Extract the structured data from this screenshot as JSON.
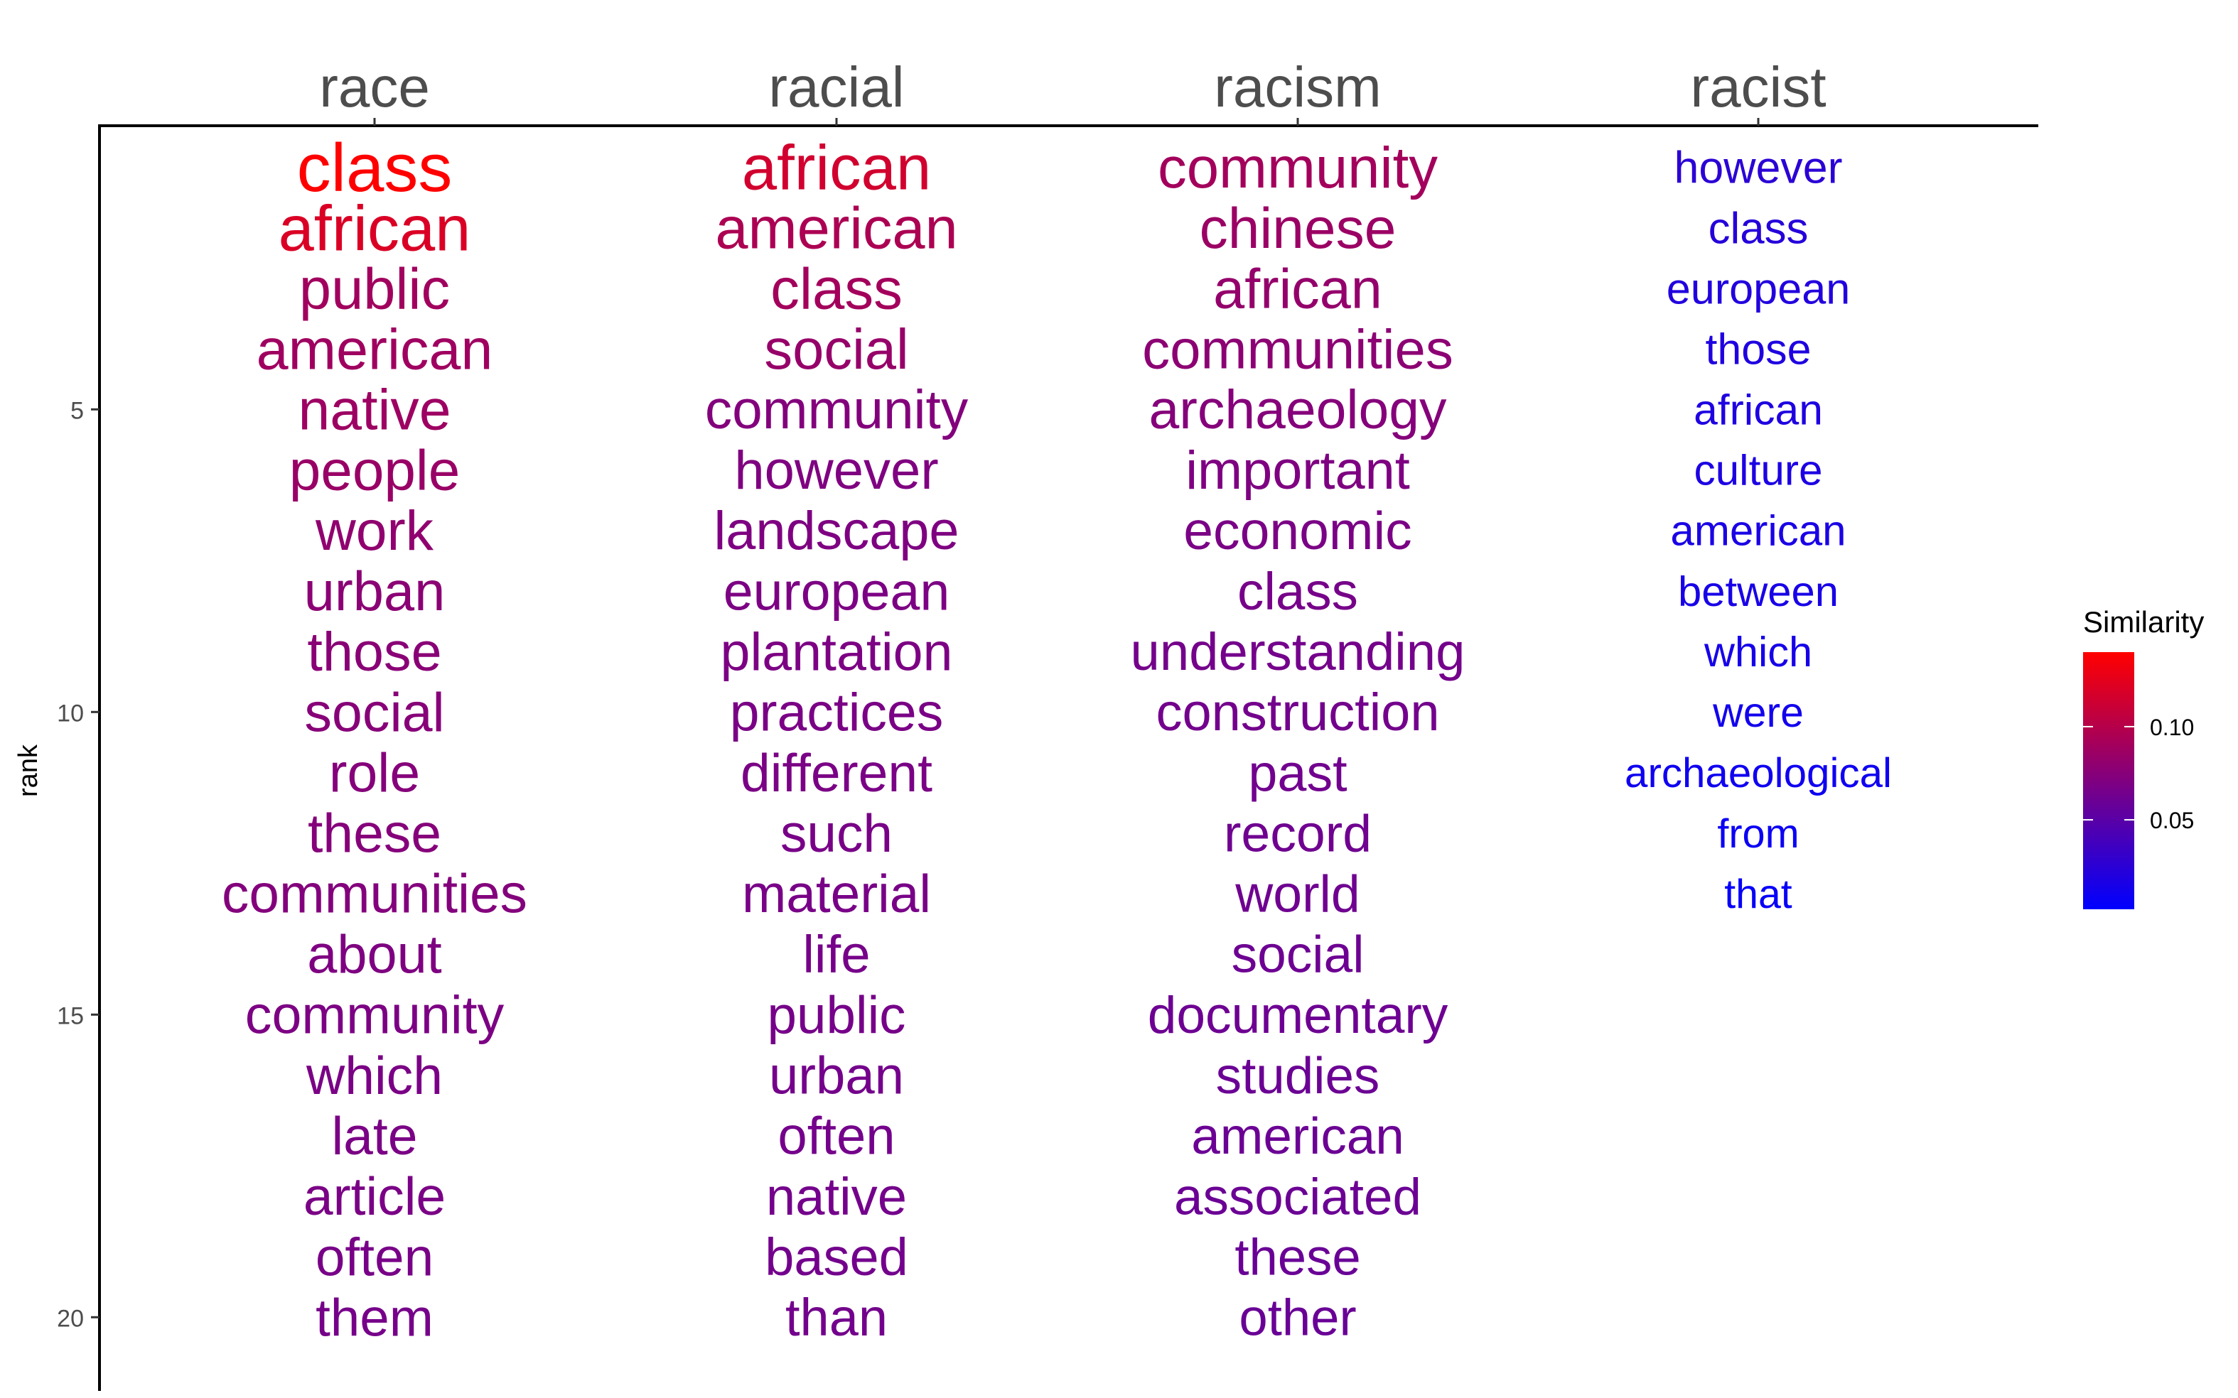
{
  "chart_data": {
    "type": "table",
    "ylabel": "rank",
    "y_axis": {
      "direction": "reversed",
      "ticks": [
        5,
        10,
        15,
        20
      ]
    },
    "legend": {
      "title": "Similarity",
      "placement": "right",
      "ticks": [
        0.05,
        0.1
      ],
      "tick_labels": [
        "0.05",
        "0.10"
      ],
      "range": [
        0.002,
        0.14
      ],
      "color_low": "#0000ff",
      "color_high": "#ff0000"
    },
    "columns": [
      {
        "label": "race",
        "words": [
          {
            "rank": 1,
            "word": "class",
            "similarity": 0.14
          },
          {
            "rank": 2,
            "word": "african",
            "similarity": 0.12
          },
          {
            "rank": 3,
            "word": "public",
            "similarity": 0.089
          },
          {
            "rank": 4,
            "word": "american",
            "similarity": 0.088
          },
          {
            "rank": 5,
            "word": "native",
            "similarity": 0.087
          },
          {
            "rank": 6,
            "word": "people",
            "similarity": 0.085
          },
          {
            "rank": 7,
            "word": "work",
            "similarity": 0.08
          },
          {
            "rank": 8,
            "word": "urban",
            "similarity": 0.077
          },
          {
            "rank": 9,
            "word": "those",
            "similarity": 0.076
          },
          {
            "rank": 10,
            "word": "social",
            "similarity": 0.075
          },
          {
            "rank": 11,
            "word": "role",
            "similarity": 0.074
          },
          {
            "rank": 12,
            "word": "these",
            "similarity": 0.074
          },
          {
            "rank": 13,
            "word": "communities",
            "similarity": 0.073
          },
          {
            "rank": 14,
            "word": "about",
            "similarity": 0.07
          },
          {
            "rank": 15,
            "word": "community",
            "similarity": 0.069
          },
          {
            "rank": 16,
            "word": "which",
            "similarity": 0.068
          },
          {
            "rank": 17,
            "word": "late",
            "similarity": 0.068
          },
          {
            "rank": 18,
            "word": "article",
            "similarity": 0.068
          },
          {
            "rank": 19,
            "word": "often",
            "similarity": 0.067
          },
          {
            "rank": 20,
            "word": "them",
            "similarity": 0.066
          }
        ]
      },
      {
        "label": "racial",
        "words": [
          {
            "rank": 1,
            "word": "african",
            "similarity": 0.115
          },
          {
            "rank": 2,
            "word": "american",
            "similarity": 0.095
          },
          {
            "rank": 3,
            "word": "class",
            "similarity": 0.09
          },
          {
            "rank": 4,
            "word": "social",
            "similarity": 0.083
          },
          {
            "rank": 5,
            "word": "community",
            "similarity": 0.073
          },
          {
            "rank": 6,
            "word": "however",
            "similarity": 0.071
          },
          {
            "rank": 7,
            "word": "landscape",
            "similarity": 0.07
          },
          {
            "rank": 8,
            "word": "european",
            "similarity": 0.069
          },
          {
            "rank": 9,
            "word": "plantation",
            "similarity": 0.069
          },
          {
            "rank": 10,
            "word": "practices",
            "similarity": 0.068
          },
          {
            "rank": 11,
            "word": "different",
            "similarity": 0.068
          },
          {
            "rank": 12,
            "word": "such",
            "similarity": 0.067
          },
          {
            "rank": 13,
            "word": "material",
            "similarity": 0.067
          },
          {
            "rank": 14,
            "word": "life",
            "similarity": 0.066
          },
          {
            "rank": 15,
            "word": "public",
            "similarity": 0.066
          },
          {
            "rank": 16,
            "word": "urban",
            "similarity": 0.065
          },
          {
            "rank": 17,
            "word": "often",
            "similarity": 0.065
          },
          {
            "rank": 18,
            "word": "native",
            "similarity": 0.065
          },
          {
            "rank": 19,
            "word": "based",
            "similarity": 0.064
          },
          {
            "rank": 20,
            "word": "than",
            "similarity": 0.064
          }
        ]
      },
      {
        "label": "racism",
        "words": [
          {
            "rank": 1,
            "word": "community",
            "similarity": 0.09
          },
          {
            "rank": 2,
            "word": "chinese",
            "similarity": 0.086
          },
          {
            "rank": 3,
            "word": "african",
            "similarity": 0.082
          },
          {
            "rank": 4,
            "word": "communities",
            "similarity": 0.078
          },
          {
            "rank": 5,
            "word": "archaeology",
            "similarity": 0.074
          },
          {
            "rank": 6,
            "word": "important",
            "similarity": 0.07
          },
          {
            "rank": 7,
            "word": "economic",
            "similarity": 0.068
          },
          {
            "rank": 8,
            "word": "class",
            "similarity": 0.066
          },
          {
            "rank": 9,
            "word": "understanding",
            "similarity": 0.065
          },
          {
            "rank": 10,
            "word": "construction",
            "similarity": 0.064
          },
          {
            "rank": 11,
            "word": "past",
            "similarity": 0.063
          },
          {
            "rank": 12,
            "word": "record",
            "similarity": 0.062
          },
          {
            "rank": 13,
            "word": "world",
            "similarity": 0.062
          },
          {
            "rank": 14,
            "word": "social",
            "similarity": 0.061
          },
          {
            "rank": 15,
            "word": "documentary",
            "similarity": 0.061
          },
          {
            "rank": 16,
            "word": "studies",
            "similarity": 0.06
          },
          {
            "rank": 17,
            "word": "american",
            "similarity": 0.06
          },
          {
            "rank": 18,
            "word": "associated",
            "similarity": 0.06
          },
          {
            "rank": 19,
            "word": "these",
            "similarity": 0.059
          },
          {
            "rank": 20,
            "word": "other",
            "similarity": 0.059
          }
        ]
      },
      {
        "label": "racist",
        "words": [
          {
            "rank": 1,
            "word": "however",
            "similarity": 0.025
          },
          {
            "rank": 2,
            "word": "class",
            "similarity": 0.022
          },
          {
            "rank": 3,
            "word": "european",
            "similarity": 0.02
          },
          {
            "rank": 4,
            "word": "those",
            "similarity": 0.019
          },
          {
            "rank": 5,
            "word": "african",
            "similarity": 0.018
          },
          {
            "rank": 6,
            "word": "culture",
            "similarity": 0.017
          },
          {
            "rank": 7,
            "word": "american",
            "similarity": 0.016
          },
          {
            "rank": 8,
            "word": "between",
            "similarity": 0.015
          },
          {
            "rank": 9,
            "word": "which",
            "similarity": 0.014
          },
          {
            "rank": 10,
            "word": "were",
            "similarity": 0.012
          },
          {
            "rank": 11,
            "word": "archaeological",
            "similarity": 0.01
          },
          {
            "rank": 12,
            "word": "from",
            "similarity": 0.008
          },
          {
            "rank": 13,
            "word": "that",
            "similarity": 0.006
          }
        ]
      }
    ]
  }
}
